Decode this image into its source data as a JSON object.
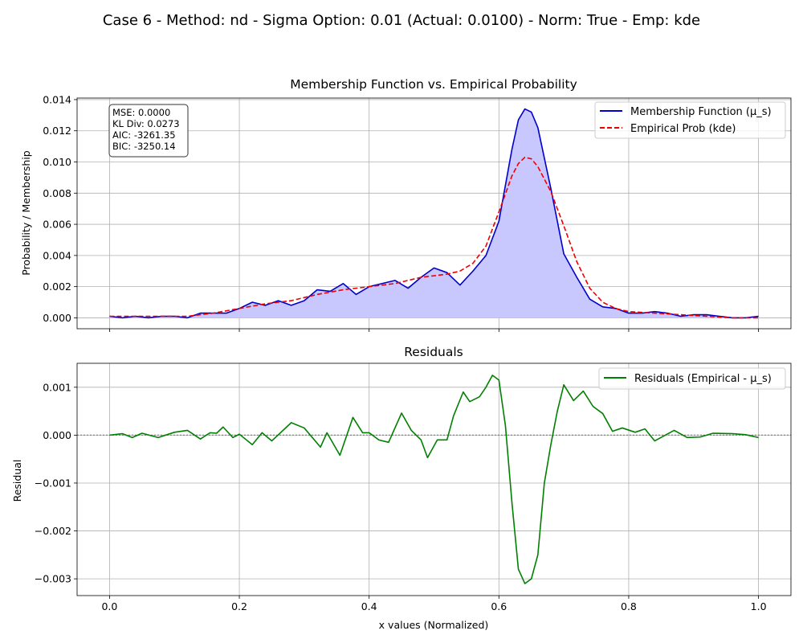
{
  "figure": {
    "suptitle": "Case 6 - Method: nd - Sigma Option: 0.01 (Actual: 0.0100) - Norm: True - Emp: kde"
  },
  "colors": {
    "membership": "#0000cc",
    "fill": "#c8c8ff",
    "empirical": "#ee0000",
    "residual": "#008000",
    "zero_line": "#808080",
    "grid": "#b0b0b0"
  },
  "chart_data": [
    {
      "type": "area",
      "title": "Membership Function vs. Empirical Probability",
      "xlabel": "",
      "ylabel": "Probability / Membership",
      "xlim": [
        -0.05,
        1.05
      ],
      "ylim": [
        -0.0007,
        0.0141
      ],
      "xticks": [
        0.0,
        0.2,
        0.4,
        0.6,
        0.8,
        1.0
      ],
      "xtick_labels": [
        "",
        "",
        "",
        "",
        "",
        ""
      ],
      "yticks": [
        0.0,
        0.002,
        0.004,
        0.006,
        0.008,
        0.01,
        0.012,
        0.014
      ],
      "ytick_labels": [
        "0.000",
        "0.002",
        "0.004",
        "0.006",
        "0.008",
        "0.010",
        "0.012",
        "0.014"
      ],
      "grid": true,
      "legend": "top-right",
      "stats": [
        "MSE: 0.0000",
        "KL Div: 0.0273",
        "AIC: -3261.35",
        "BIC: -3250.14"
      ],
      "series": [
        {
          "name": "Membership Function (μ_s)",
          "style": "solid",
          "filled": true,
          "x": [
            0.0,
            0.02,
            0.04,
            0.06,
            0.08,
            0.1,
            0.12,
            0.14,
            0.16,
            0.18,
            0.2,
            0.22,
            0.24,
            0.26,
            0.28,
            0.3,
            0.32,
            0.34,
            0.36,
            0.38,
            0.4,
            0.42,
            0.44,
            0.46,
            0.48,
            0.5,
            0.52,
            0.54,
            0.56,
            0.58,
            0.6,
            0.62,
            0.63,
            0.64,
            0.65,
            0.66,
            0.68,
            0.7,
            0.72,
            0.74,
            0.76,
            0.78,
            0.8,
            0.82,
            0.84,
            0.86,
            0.88,
            0.9,
            0.92,
            0.94,
            0.96,
            0.98,
            1.0
          ],
          "y": [
            0.0001,
            0.0,
            0.0001,
            0.0,
            0.0001,
            0.0001,
            0.0,
            0.0003,
            0.0003,
            0.0003,
            0.0006,
            0.001,
            0.0008,
            0.0011,
            0.0008,
            0.0011,
            0.0018,
            0.0017,
            0.0022,
            0.0015,
            0.002,
            0.0022,
            0.0024,
            0.0019,
            0.0026,
            0.0032,
            0.0029,
            0.0021,
            0.003,
            0.004,
            0.0062,
            0.0108,
            0.0127,
            0.0134,
            0.0132,
            0.0122,
            0.0083,
            0.0041,
            0.0026,
            0.0012,
            0.0007,
            0.0006,
            0.0003,
            0.0003,
            0.0004,
            0.0003,
            0.0001,
            0.0002,
            0.0002,
            0.0001,
            0.0,
            0.0,
            0.0001
          ]
        },
        {
          "name": "Empirical Prob (kde)",
          "style": "dashed",
          "x": [
            0.0,
            0.04,
            0.08,
            0.12,
            0.16,
            0.2,
            0.24,
            0.28,
            0.32,
            0.36,
            0.4,
            0.44,
            0.48,
            0.52,
            0.54,
            0.56,
            0.58,
            0.6,
            0.62,
            0.63,
            0.64,
            0.65,
            0.66,
            0.68,
            0.7,
            0.72,
            0.74,
            0.76,
            0.78,
            0.8,
            0.84,
            0.88,
            0.92,
            0.96,
            1.0
          ],
          "y": [
            0.0001,
            0.0001,
            0.0001,
            0.0001,
            0.0003,
            0.0006,
            0.0009,
            0.0011,
            0.0015,
            0.0018,
            0.002,
            0.0022,
            0.0026,
            0.0028,
            0.003,
            0.0035,
            0.0046,
            0.0068,
            0.0091,
            0.0099,
            0.0103,
            0.0102,
            0.0097,
            0.0081,
            0.0059,
            0.0036,
            0.0019,
            0.001,
            0.0006,
            0.0004,
            0.0003,
            0.0002,
            0.0001,
            0.0,
            0.0
          ]
        }
      ]
    },
    {
      "type": "line",
      "title": "Residuals",
      "xlabel": "x values (Normalized)",
      "ylabel": "Residual",
      "xlim": [
        -0.05,
        1.05
      ],
      "ylim": [
        -0.00335,
        0.0015
      ],
      "xticks": [
        0.0,
        0.2,
        0.4,
        0.6,
        0.8,
        1.0
      ],
      "xtick_labels": [
        "0.0",
        "0.2",
        "0.4",
        "0.6",
        "0.8",
        "1.0"
      ],
      "yticks": [
        -0.003,
        -0.002,
        -0.001,
        0.0,
        0.001
      ],
      "ytick_labels": [
        "−0.003",
        "−0.002",
        "−0.001",
        "0.000",
        "0.001"
      ],
      "grid": true,
      "legend": "top-right",
      "reference_line": 0.0,
      "series": [
        {
          "name": "Residuals (Empirical - μ_s)",
          "style": "solid",
          "x": [
            0.0,
            0.02,
            0.035,
            0.05,
            0.075,
            0.1,
            0.12,
            0.14,
            0.155,
            0.165,
            0.175,
            0.19,
            0.2,
            0.22,
            0.235,
            0.25,
            0.28,
            0.3,
            0.325,
            0.335,
            0.355,
            0.375,
            0.39,
            0.4,
            0.415,
            0.43,
            0.45,
            0.465,
            0.48,
            0.49,
            0.505,
            0.52,
            0.53,
            0.545,
            0.555,
            0.57,
            0.58,
            0.59,
            0.6,
            0.61,
            0.62,
            0.63,
            0.64,
            0.65,
            0.66,
            0.67,
            0.68,
            0.69,
            0.7,
            0.715,
            0.73,
            0.745,
            0.76,
            0.775,
            0.79,
            0.81,
            0.825,
            0.84,
            0.87,
            0.89,
            0.91,
            0.93,
            0.96,
            0.98,
            1.0
          ],
          "y": [
            0.0,
            3e-05,
            -5e-05,
            4e-05,
            -5e-05,
            6e-05,
            0.0001,
            -8e-05,
            5e-05,
            4e-05,
            0.00017,
            -5e-05,
            2e-05,
            -0.0002,
            5e-05,
            -0.00012,
            0.00026,
            0.00015,
            -0.00025,
            5e-05,
            -0.00042,
            0.00037,
            5e-05,
            5e-05,
            -0.0001,
            -0.00015,
            0.00046,
            0.0001,
            -0.0001,
            -0.00047,
            -0.0001,
            -0.0001,
            0.0004,
            0.0009,
            0.0007,
            0.0008,
            0.001,
            0.00125,
            0.00115,
            0.0002,
            -0.0014,
            -0.0028,
            -0.0031,
            -0.003,
            -0.0025,
            -0.001,
            -0.0002,
            0.0005,
            0.00105,
            0.00072,
            0.00092,
            0.0006,
            0.00045,
            8e-05,
            0.00015,
            6e-05,
            0.00013,
            -0.00012,
            0.0001,
            -5e-05,
            -4e-05,
            4e-05,
            3e-05,
            1e-05,
            -5e-05
          ]
        }
      ]
    }
  ]
}
